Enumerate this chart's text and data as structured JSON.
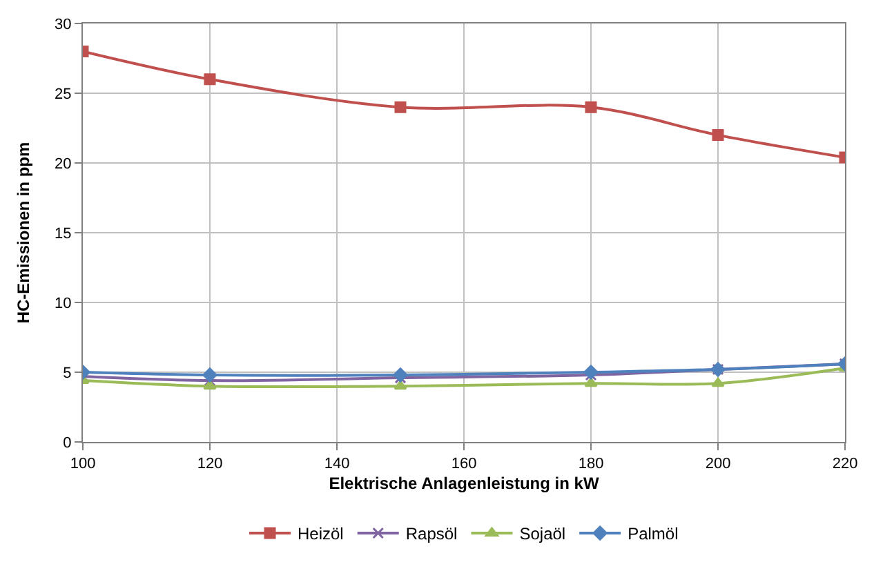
{
  "chart_data": {
    "type": "line",
    "xlabel": "Elektrische Anlagenleistung in kW",
    "ylabel": "HC-Emissionen in ppm",
    "x": [
      100,
      120,
      150,
      180,
      200,
      220
    ],
    "series": [
      {
        "name": "Heizöl",
        "color": "#c0504d",
        "marker": "square",
        "values": [
          28,
          26,
          24,
          24,
          22,
          20.4
        ]
      },
      {
        "name": "Rapsöl",
        "color": "#8064a2",
        "marker": "cross",
        "values": [
          4.7,
          4.4,
          4.6,
          4.8,
          5.2,
          5.6
        ]
      },
      {
        "name": "Sojaöl",
        "color": "#9bbb59",
        "marker": "triangle",
        "values": [
          4.4,
          4.0,
          4.0,
          4.2,
          4.2,
          5.3
        ]
      },
      {
        "name": "Palmöl",
        "color": "#4f81bd",
        "marker": "diamond",
        "values": [
          5.0,
          4.8,
          4.8,
          5.0,
          5.2,
          5.6
        ]
      }
    ],
    "xlim": [
      100,
      220
    ],
    "xticks": [
      100,
      120,
      140,
      160,
      180,
      200,
      220
    ],
    "ylim": [
      0,
      30
    ],
    "yticks": [
      0,
      5,
      10,
      15,
      20,
      25,
      30
    ],
    "grid": true,
    "legend": "bottom"
  }
}
